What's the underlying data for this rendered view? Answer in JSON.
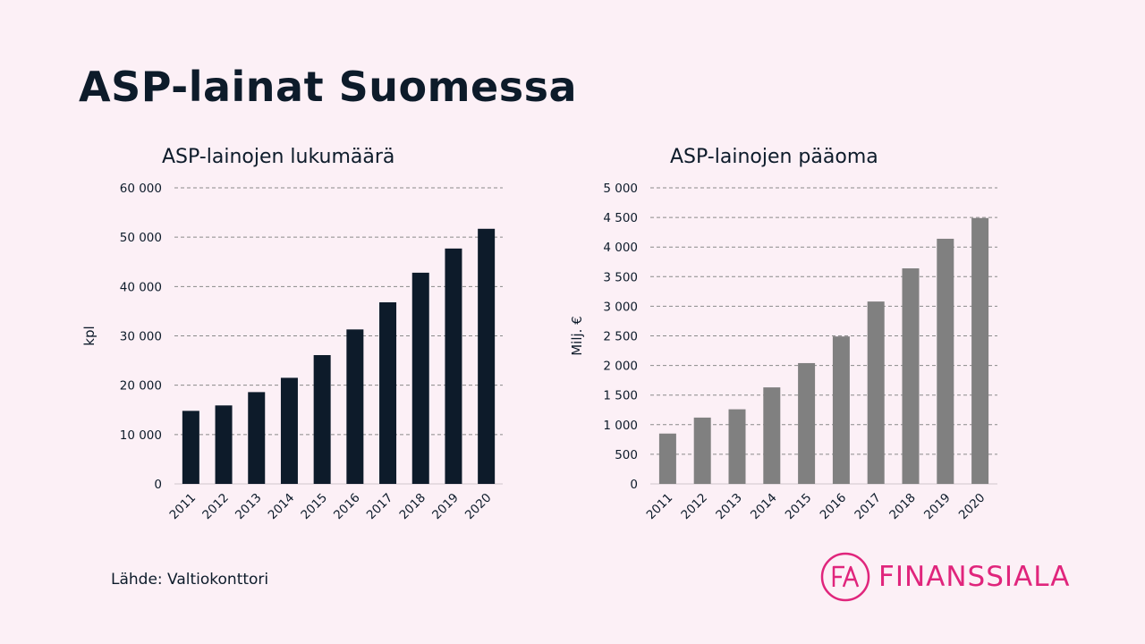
{
  "page": {
    "title": "ASP-lainat Suomessa",
    "source": "Lähde: Valtiokonttori",
    "logo_text": "FINANSSIALA",
    "logo_mark_text": "FA",
    "brand_color": "#e0257c"
  },
  "chart_data": [
    {
      "type": "bar",
      "title": "ASP-lainojen lukumäärä",
      "xlabel": "",
      "ylabel": "kpl",
      "categories": [
        "2011",
        "2012",
        "2013",
        "2014",
        "2015",
        "2016",
        "2017",
        "2018",
        "2019",
        "2020"
      ],
      "values": [
        14800,
        15900,
        18600,
        21500,
        26100,
        31300,
        36800,
        42800,
        47700,
        51700
      ],
      "ylim": [
        0,
        60000
      ],
      "yticks": [
        0,
        10000,
        20000,
        30000,
        40000,
        50000,
        60000
      ],
      "ytick_labels": [
        "0",
        "10 000",
        "20 000",
        "30 000",
        "40 000",
        "50 000",
        "60 000"
      ],
      "bar_color": "#0d1b2a",
      "grid": true
    },
    {
      "type": "bar",
      "title": "ASP-lainojen pääoma",
      "xlabel": "",
      "ylabel": "Milj. €",
      "categories": [
        "2011",
        "2012",
        "2013",
        "2014",
        "2015",
        "2016",
        "2017",
        "2018",
        "2019",
        "2020"
      ],
      "values": [
        850,
        1120,
        1260,
        1630,
        2040,
        2490,
        3080,
        3640,
        4140,
        4490
      ],
      "ylim": [
        0,
        5000
      ],
      "yticks": [
        0,
        500,
        1000,
        1500,
        2000,
        2500,
        3000,
        3500,
        4000,
        4500,
        5000
      ],
      "ytick_labels": [
        "0",
        "500",
        "1 000",
        "1 500",
        "2 000",
        "2 500",
        "3 000",
        "3 500",
        "4 000",
        "4 500",
        "5 000"
      ],
      "bar_color": "#808080",
      "grid": true
    }
  ]
}
